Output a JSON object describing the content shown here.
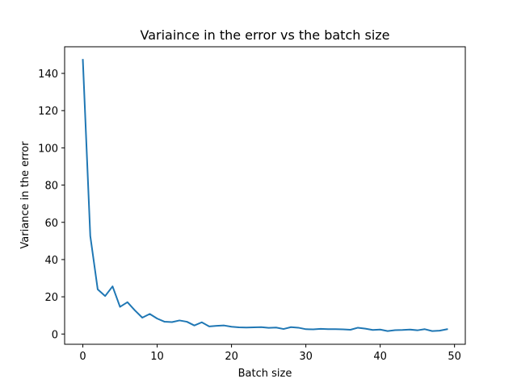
{
  "chart_data": {
    "type": "line",
    "title": "Variaince in the error vs the batch size",
    "xlabel": "Batch size",
    "ylabel": "Variance in the error",
    "xlim": [
      -2.45,
      51.45
    ],
    "ylim": [
      -5.5,
      154.3
    ],
    "xticks": [
      0,
      10,
      20,
      30,
      40,
      50
    ],
    "yticks": [
      0,
      20,
      40,
      60,
      80,
      100,
      120,
      140
    ],
    "grid": false,
    "series": [
      {
        "color": "#1f77b4",
        "x": [
          0,
          1,
          2,
          3,
          4,
          5,
          6,
          7,
          8,
          9,
          10,
          11,
          12,
          13,
          14,
          15,
          16,
          17,
          18,
          19,
          20,
          21,
          22,
          23,
          24,
          25,
          26,
          27,
          28,
          29,
          30,
          31,
          32,
          33,
          34,
          35,
          36,
          37,
          38,
          39,
          40,
          41,
          42,
          43,
          44,
          45,
          46,
          47,
          48,
          49
        ],
        "values": [
          147.3,
          52.7,
          24.0,
          20.4,
          25.6,
          14.6,
          17.1,
          12.7,
          8.8,
          10.8,
          8.3,
          6.6,
          6.4,
          7.3,
          6.6,
          4.6,
          6.3,
          4.1,
          4.4,
          4.6,
          3.9,
          3.6,
          3.5,
          3.6,
          3.7,
          3.3,
          3.5,
          2.7,
          3.7,
          3.4,
          2.6,
          2.5,
          2.8,
          2.6,
          2.6,
          2.5,
          2.3,
          3.4,
          2.9,
          2.2,
          2.4,
          1.6,
          2.1,
          2.2,
          2.4,
          2.0,
          2.6,
          1.6,
          1.8,
          2.6
        ]
      }
    ]
  }
}
